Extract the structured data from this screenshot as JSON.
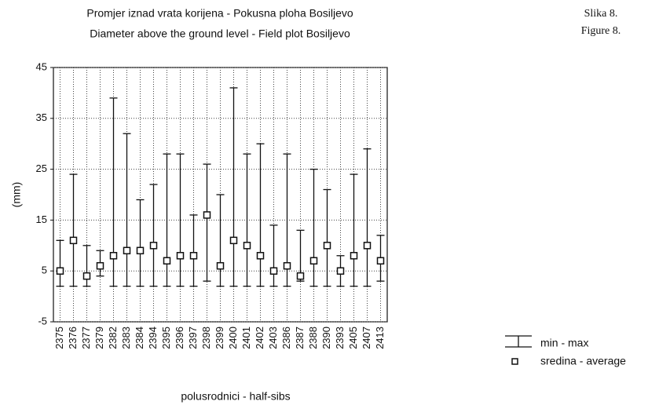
{
  "chart_data": {
    "type": "range",
    "title": "Promjer iznad vrata korijena - Pokusna ploha Bosiljevo",
    "subtitle": "Diameter above the ground level - Field plot Bosiljevo",
    "figure_label": [
      "Slika 8.",
      "Figure 8."
    ],
    "x_label": "polusrodnici - half-sibs",
    "y_label": "(mm)",
    "categories": [
      "2375",
      "2376",
      "2377",
      "2379",
      "2382",
      "2383",
      "2384",
      "2394",
      "2395",
      "2396",
      "2397",
      "2398",
      "2399",
      "2400",
      "2401",
      "2402",
      "2403",
      "2386",
      "2387",
      "2388",
      "2390",
      "2393",
      "2405",
      "2407",
      "2413"
    ],
    "range": {
      "name": "min - max",
      "color": "#111111",
      "min": [
        2,
        2,
        2,
        4,
        2,
        2,
        2,
        2,
        2,
        2,
        2,
        3,
        2,
        2,
        2,
        2,
        2,
        2,
        3,
        2,
        2,
        2,
        2,
        2,
        3
      ],
      "max": [
        11,
        24,
        10,
        9,
        39,
        32,
        19,
        22,
        28,
        28,
        16,
        26,
        20,
        41,
        28,
        30,
        14,
        28,
        13,
        25,
        21,
        8,
        24,
        29,
        12
      ]
    },
    "average": {
      "name": "sredina - average",
      "color": "#111111",
      "values": [
        5,
        11,
        4,
        6,
        8,
        9,
        9,
        10,
        7,
        8,
        8,
        16,
        6,
        11,
        10,
        8,
        5,
        6,
        4,
        7,
        10,
        5,
        8,
        10,
        7
      ]
    },
    "ylim": [
      -5,
      45
    ],
    "yticks": [
      -5,
      5,
      15,
      25,
      35,
      45
    ],
    "grid": true
  }
}
